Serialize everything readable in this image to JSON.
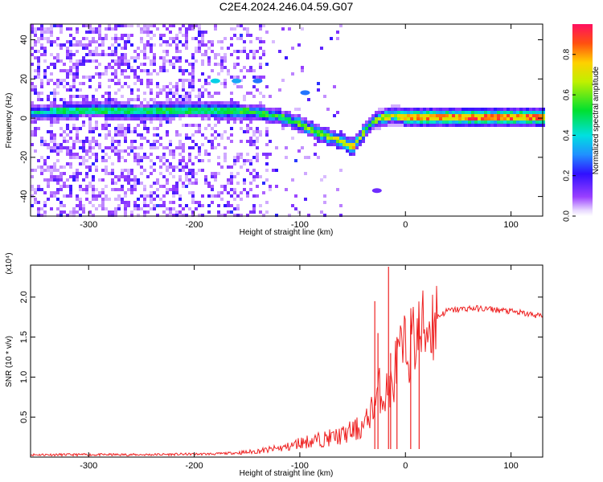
{
  "title": "C2E4.2024.246.04.59.G07",
  "chart_data": [
    {
      "type": "heatmap",
      "title": "C2E4.2024.246.04.59.G07",
      "xlabel": "Height of straight line (km)",
      "ylabel": "Frequency (Hz)",
      "xlim": [
        -355,
        130
      ],
      "ylim": [
        -50,
        48
      ],
      "x_ticks": [
        "-300",
        "-200",
        "-100",
        "0",
        "100"
      ],
      "y_ticks": [
        "-40",
        "-20",
        "0",
        "20",
        "40"
      ],
      "colorbar": {
        "label": "Normalized spectral amplitude",
        "range": [
          0.0,
          0.95
        ],
        "ticks": [
          "0.0",
          "0.2",
          "0.4",
          "0.6",
          "0.8"
        ],
        "colormap": "rainbow"
      },
      "ridge": {
        "x": [
          -355,
          -300,
          -250,
          -200,
          -150,
          -120,
          -100,
          -80,
          -60,
          -50,
          -40,
          -35,
          -25,
          -10,
          0,
          20,
          60,
          100,
          130
        ],
        "freq": [
          3,
          4,
          3.5,
          4,
          3.5,
          1,
          -3,
          -8,
          -12,
          -15,
          -8,
          -4,
          0,
          1,
          0.5,
          0.5,
          0.5,
          0.5,
          0.5
        ],
        "amplitude": [
          0.45,
          0.5,
          0.5,
          0.5,
          0.55,
          0.55,
          0.6,
          0.65,
          0.7,
          0.75,
          0.6,
          0.5,
          0.65,
          0.75,
          0.8,
          0.85,
          0.85,
          0.85,
          0.85
        ]
      },
      "side_features": [
        {
          "x": -180,
          "freq": 19,
          "amplitude": 0.4
        },
        {
          "x": -160,
          "freq": 19,
          "amplitude": 0.35
        },
        {
          "x": -140,
          "freq": 19,
          "amplitude": 0.3
        },
        {
          "x": -95,
          "freq": 13,
          "amplitude": 0.3
        },
        {
          "x": -27,
          "freq": -37,
          "amplitude": 0.15
        }
      ]
    },
    {
      "type": "line",
      "xlabel": "Height of straight line (km)",
      "ylabel": "SNR (10 * v/v)",
      "scale_label": "(x10⁴)",
      "xlim": [
        -355,
        130
      ],
      "ylim": [
        0,
        2.4
      ],
      "x_ticks": [
        "-300",
        "-200",
        "-100",
        "0",
        "100"
      ],
      "y_ticks": [
        "0.5",
        "1.0",
        "1.5",
        "2.0"
      ],
      "series": [
        {
          "name": "SNR",
          "color": "#ee2222",
          "x": [
            -355,
            -250,
            -180,
            -150,
            -130,
            -110,
            -100,
            -80,
            -60,
            -40,
            -35,
            -30,
            -25,
            -20,
            -15,
            -12,
            -10,
            -5,
            0,
            10,
            20,
            30,
            40,
            60,
            80,
            100,
            120,
            130
          ],
          "y": [
            0.03,
            0.03,
            0.04,
            0.06,
            0.09,
            0.13,
            0.18,
            0.22,
            0.27,
            0.38,
            0.5,
            0.65,
            0.85,
            0.75,
            0.9,
            0.8,
            1.1,
            1.25,
            1.35,
            1.5,
            1.62,
            1.75,
            1.83,
            1.86,
            1.85,
            1.82,
            1.78,
            1.76
          ]
        }
      ],
      "spikes": [
        {
          "x": -29,
          "y": 1.95
        },
        {
          "x": -26,
          "y": 1.55
        },
        {
          "x": -16,
          "y": 2.38
        },
        {
          "x": -14,
          "y": 1.3
        },
        {
          "x": -8,
          "y": 1.5
        },
        {
          "x": 5,
          "y": 1.65
        },
        {
          "x": 13,
          "y": 1.7
        }
      ]
    }
  ]
}
